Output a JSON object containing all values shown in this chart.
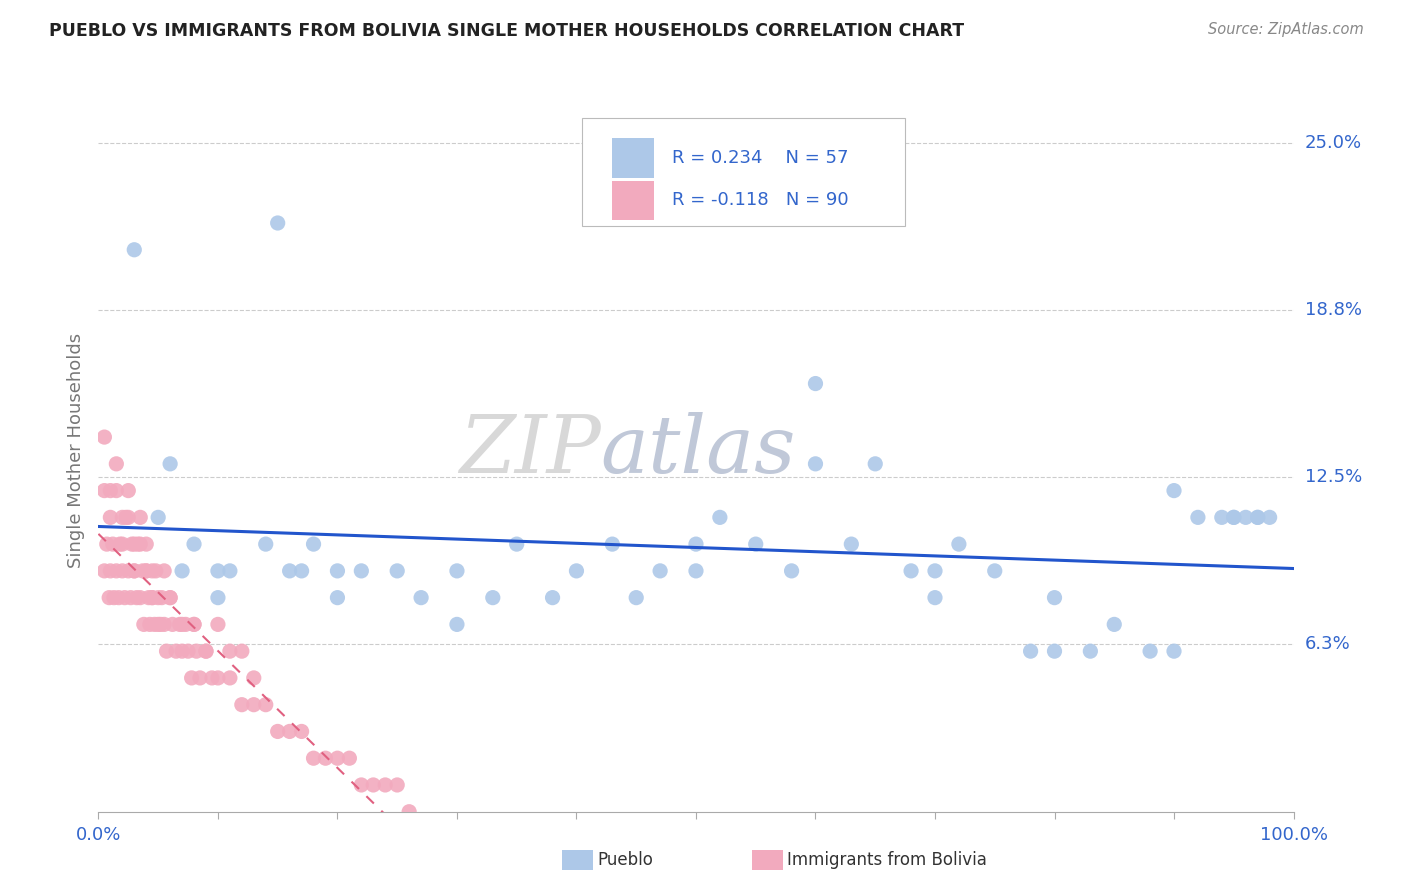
{
  "title": "PUEBLO VS IMMIGRANTS FROM BOLIVIA SINGLE MOTHER HOUSEHOLDS CORRELATION CHART",
  "source": "Source: ZipAtlas.com",
  "ylabel": "Single Mother Households",
  "watermark_zip": "ZIP",
  "watermark_atlas": "atlas",
  "xlim": [
    0.0,
    1.0
  ],
  "ylim": [
    0.0,
    0.27
  ],
  "ytick_positions": [
    0.0625,
    0.125,
    0.1875,
    0.25
  ],
  "ytick_labels": [
    "6.3%",
    "12.5%",
    "18.8%",
    "25.0%"
  ],
  "legend_r1": "R = 0.234",
  "legend_n1": "N = 57",
  "legend_r2": "R = -0.118",
  "legend_n2": "N = 90",
  "legend_label1": "Pueblo",
  "legend_label2": "Immigrants from Bolivia",
  "color_pueblo": "#adc8e8",
  "color_bolivia": "#f2aabe",
  "color_line_pueblo": "#2255cc",
  "color_line_bolivia": "#e06080",
  "color_text_blue": "#3366cc",
  "color_title": "#222222",
  "color_source": "#888888",
  "color_ylabel": "#777777",
  "background_color": "#ffffff",
  "grid_color": "#cccccc",
  "pueblo_x": [
    0.03,
    0.05,
    0.06,
    0.07,
    0.08,
    0.1,
    0.11,
    0.14,
    0.15,
    0.16,
    0.17,
    0.18,
    0.2,
    0.22,
    0.25,
    0.27,
    0.3,
    0.33,
    0.35,
    0.38,
    0.4,
    0.43,
    0.45,
    0.47,
    0.5,
    0.52,
    0.55,
    0.58,
    0.6,
    0.63,
    0.65,
    0.68,
    0.7,
    0.72,
    0.75,
    0.78,
    0.8,
    0.83,
    0.85,
    0.88,
    0.9,
    0.92,
    0.94,
    0.95,
    0.96,
    0.97,
    0.98,
    0.1,
    0.2,
    0.3,
    0.5,
    0.6,
    0.7,
    0.8,
    0.9,
    0.95,
    0.97
  ],
  "pueblo_y": [
    0.21,
    0.11,
    0.13,
    0.09,
    0.1,
    0.08,
    0.09,
    0.1,
    0.22,
    0.09,
    0.09,
    0.1,
    0.09,
    0.09,
    0.09,
    0.08,
    0.09,
    0.08,
    0.1,
    0.08,
    0.09,
    0.1,
    0.08,
    0.09,
    0.09,
    0.11,
    0.1,
    0.09,
    0.13,
    0.1,
    0.13,
    0.09,
    0.09,
    0.1,
    0.09,
    0.06,
    0.06,
    0.06,
    0.07,
    0.06,
    0.06,
    0.11,
    0.11,
    0.11,
    0.11,
    0.11,
    0.11,
    0.09,
    0.08,
    0.07,
    0.1,
    0.16,
    0.08,
    0.08,
    0.12,
    0.11,
    0.11
  ],
  "bolivia_x": [
    0.005,
    0.007,
    0.009,
    0.01,
    0.012,
    0.013,
    0.015,
    0.017,
    0.018,
    0.02,
    0.022,
    0.023,
    0.025,
    0.027,
    0.028,
    0.03,
    0.032,
    0.033,
    0.035,
    0.037,
    0.038,
    0.04,
    0.042,
    0.043,
    0.045,
    0.047,
    0.048,
    0.05,
    0.052,
    0.053,
    0.055,
    0.057,
    0.06,
    0.062,
    0.065,
    0.068,
    0.07,
    0.073,
    0.075,
    0.078,
    0.08,
    0.082,
    0.085,
    0.09,
    0.095,
    0.1,
    0.11,
    0.12,
    0.13,
    0.14,
    0.15,
    0.16,
    0.17,
    0.18,
    0.19,
    0.2,
    0.21,
    0.22,
    0.23,
    0.24,
    0.25,
    0.26,
    0.005,
    0.01,
    0.015,
    0.02,
    0.025,
    0.03,
    0.035,
    0.04,
    0.045,
    0.05,
    0.055,
    0.06,
    0.07,
    0.08,
    0.09,
    0.1,
    0.11,
    0.12,
    0.13,
    0.005,
    0.01,
    0.015,
    0.02,
    0.025,
    0.03,
    0.035,
    0.04,
    0.045
  ],
  "bolivia_y": [
    0.09,
    0.1,
    0.08,
    0.09,
    0.1,
    0.08,
    0.09,
    0.08,
    0.1,
    0.09,
    0.08,
    0.11,
    0.09,
    0.08,
    0.1,
    0.09,
    0.08,
    0.1,
    0.08,
    0.09,
    0.07,
    0.09,
    0.08,
    0.07,
    0.08,
    0.07,
    0.09,
    0.08,
    0.07,
    0.08,
    0.07,
    0.06,
    0.08,
    0.07,
    0.06,
    0.07,
    0.06,
    0.07,
    0.06,
    0.05,
    0.07,
    0.06,
    0.05,
    0.06,
    0.05,
    0.05,
    0.05,
    0.04,
    0.04,
    0.04,
    0.03,
    0.03,
    0.03,
    0.02,
    0.02,
    0.02,
    0.02,
    0.01,
    0.01,
    0.01,
    0.01,
    0.0,
    0.12,
    0.11,
    0.12,
    0.1,
    0.11,
    0.09,
    0.1,
    0.09,
    0.08,
    0.07,
    0.09,
    0.08,
    0.07,
    0.07,
    0.06,
    0.07,
    0.06,
    0.06,
    0.05,
    0.14,
    0.12,
    0.13,
    0.11,
    0.12,
    0.1,
    0.11,
    0.1,
    0.09
  ]
}
